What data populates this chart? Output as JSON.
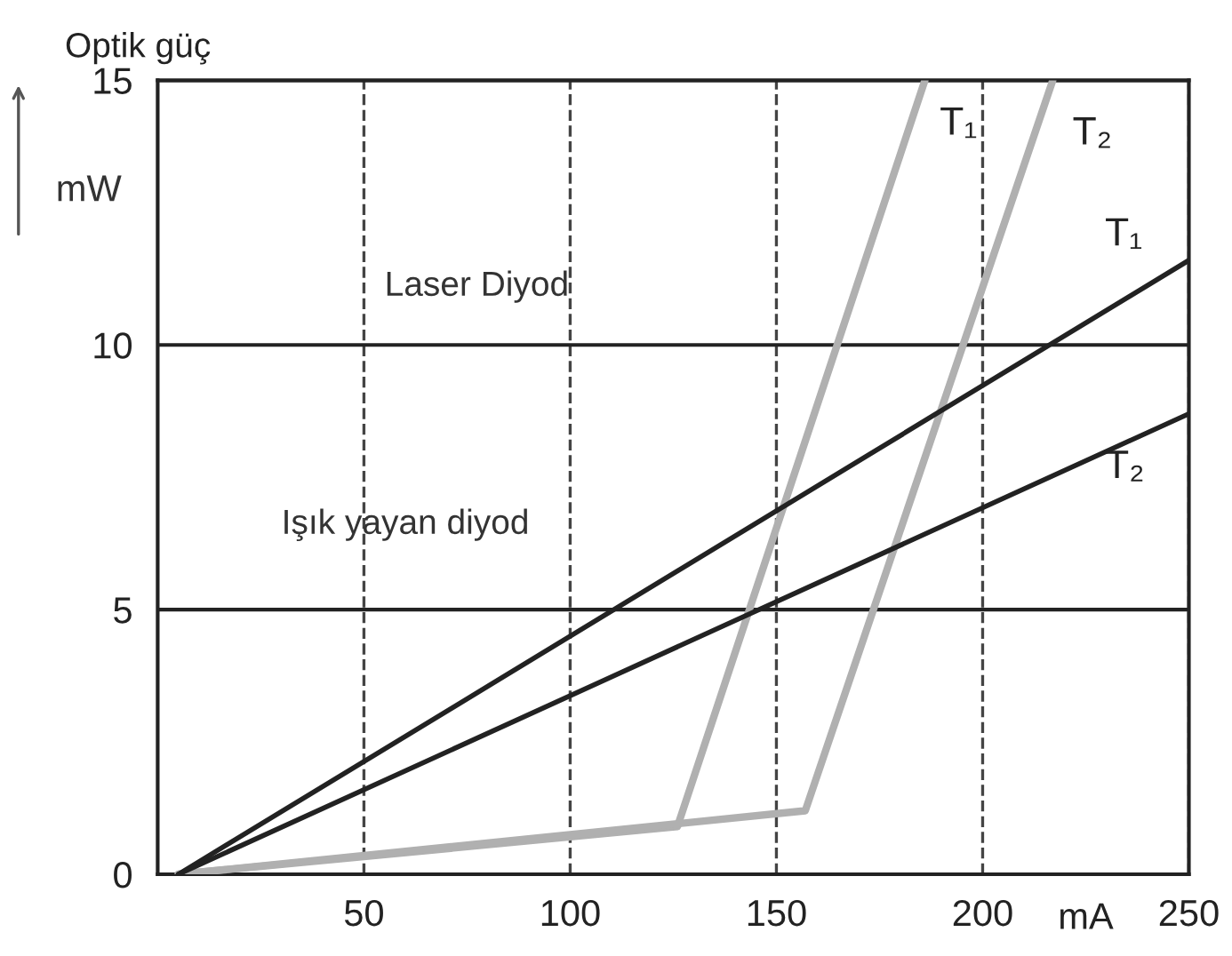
{
  "chart_data": {
    "type": "line",
    "xlabel": "mA",
    "ylabel": "Optik güç",
    "annotations": [
      "mW",
      "Laser Diyod",
      "Işık yayan diyod"
    ],
    "series": [
      {
        "name": "T₁",
        "color": "#b0b0b0",
        "x": [
          5,
          126,
          186
        ],
        "values": [
          0,
          0.9,
          15
        ]
      },
      {
        "name": "T₂",
        "color": "#b0b0b0",
        "x": [
          5,
          157,
          217
        ],
        "values": [
          0,
          1.2,
          15
        ]
      },
      {
        "name": "T₁",
        "color": "#222222",
        "x": [
          5,
          250
        ],
        "values": [
          0,
          11.6
        ]
      },
      {
        "name": "T₂",
        "color": "#222222",
        "x": [
          5,
          250
        ],
        "values": [
          0,
          8.7
        ]
      }
    ],
    "xlim": [
      0,
      250
    ],
    "ylim": [
      0,
      15
    ],
    "xticks": [
      50,
      100,
      150,
      200,
      250
    ],
    "yticks": [
      0,
      5,
      10,
      15
    ],
    "grid": true,
    "legend": false,
    "marker": "none",
    "line_style": "solid"
  }
}
